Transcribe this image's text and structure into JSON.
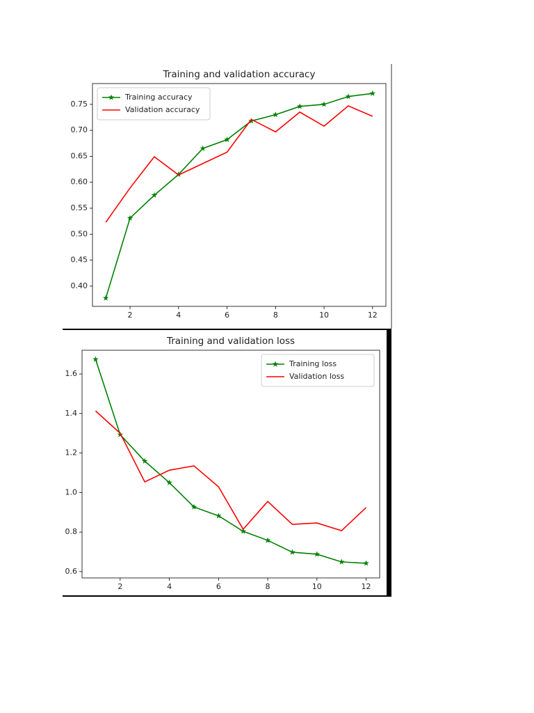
{
  "chart_data": [
    {
      "type": "line",
      "title": "Training and validation accuracy",
      "x": [
        1,
        2,
        3,
        4,
        5,
        6,
        7,
        8,
        9,
        10,
        11,
        12
      ],
      "series": [
        {
          "name": "Training accuracy",
          "color": "#008000",
          "marker": "star",
          "values": [
            0.377,
            0.531,
            0.575,
            0.615,
            0.665,
            0.682,
            0.718,
            0.73,
            0.746,
            0.75,
            0.765,
            0.771
          ]
        },
        {
          "name": "Validation accuracy",
          "color": "#ff0000",
          "values": [
            0.523,
            0.589,
            0.649,
            0.614,
            0.636,
            0.658,
            0.721,
            0.697,
            0.735,
            0.708,
            0.747,
            0.727
          ]
        }
      ],
      "xlim": [
        0.45,
        12.55
      ],
      "xticks": [
        2,
        4,
        6,
        8,
        10,
        12
      ],
      "ylim": [
        0.361,
        0.79
      ],
      "yticks": [
        {
          "value": 0.4,
          "label": "0.40"
        },
        0.45,
        {
          "value": 0.5,
          "label": "0.50"
        },
        0.55,
        {
          "value": 0.6,
          "label": "0.60"
        },
        0.65,
        {
          "value": 0.7,
          "label": "0.70"
        },
        0.75
      ],
      "legend": "upper left"
    },
    {
      "type": "line",
      "title": "Training and validation loss",
      "x": [
        1,
        2,
        3,
        4,
        5,
        6,
        7,
        8,
        9,
        10,
        11,
        12
      ],
      "series": [
        {
          "name": "Training loss",
          "color": "#008000",
          "marker": "star",
          "values": [
            1.674,
            1.293,
            1.159,
            1.05,
            0.927,
            0.882,
            0.804,
            0.758,
            0.698,
            0.688,
            0.649,
            0.642
          ]
        },
        {
          "name": "Validation loss",
          "color": "#ff0000",
          "values": [
            1.413,
            1.3,
            1.054,
            1.113,
            1.135,
            1.029,
            0.814,
            0.955,
            0.839,
            0.846,
            0.807,
            0.924
          ]
        }
      ],
      "xlim": [
        0.45,
        12.55
      ],
      "xticks": [
        2,
        4,
        6,
        8,
        10,
        12
      ],
      "ylim": [
        0.568,
        1.72
      ],
      "yticks": [
        0.6,
        0.8,
        {
          "value": 1.0,
          "label": "1.0"
        },
        1.2,
        1.4,
        1.6
      ],
      "legend": "upper right"
    }
  ]
}
